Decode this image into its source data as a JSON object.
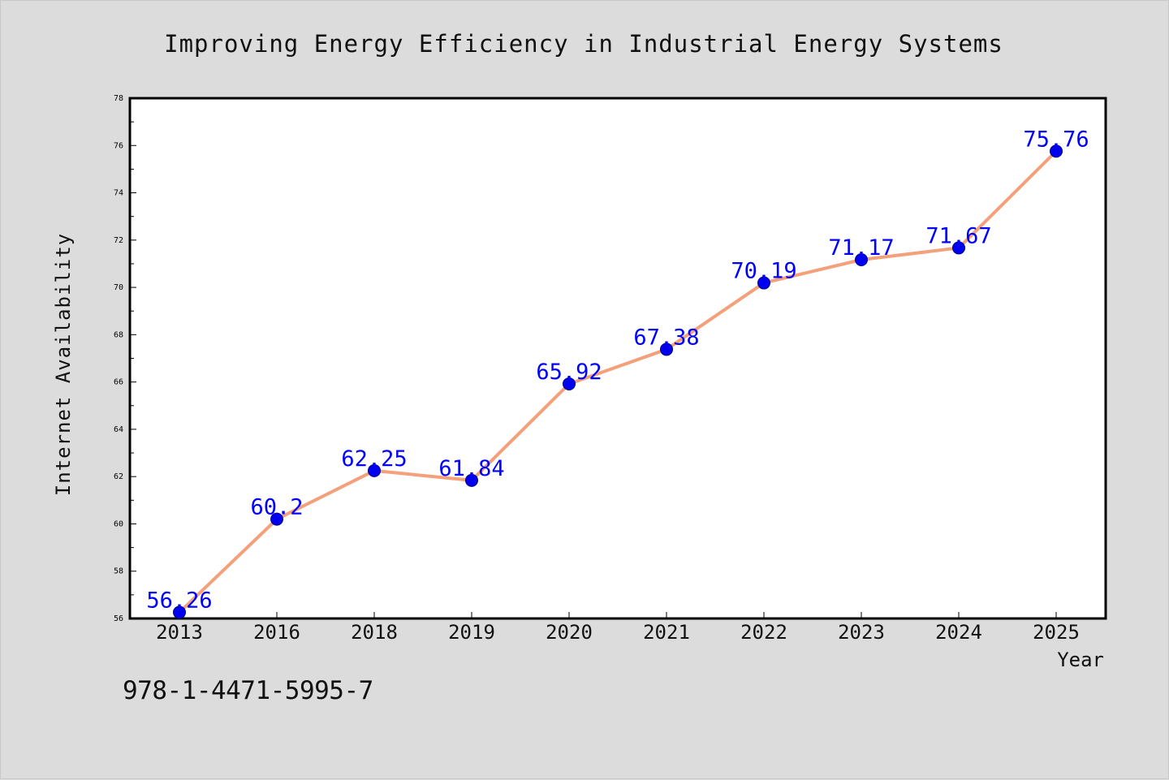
{
  "chart_data": {
    "type": "line",
    "title": "Improving Energy Efficiency in Industrial Energy Systems",
    "xlabel": "Year",
    "ylabel": "Internet Availability",
    "categories": [
      "2013",
      "2016",
      "2018",
      "2019",
      "2020",
      "2021",
      "2022",
      "2023",
      "2024",
      "2025"
    ],
    "series": [
      {
        "values": [
          56.26,
          60.2,
          62.25,
          61.84,
          65.92,
          67.38,
          70.19,
          71.17,
          71.67,
          75.76
        ],
        "value_labels": [
          "56.26",
          "60.2",
          "62.25",
          "61.84",
          "65.92",
          "67.38",
          "70.19",
          "71.17",
          "71.67",
          "75.76"
        ],
        "line_color": "#f4a07a",
        "marker_color": "#0000ee",
        "label_color": "#0000ff"
      }
    ],
    "ylim": [
      56,
      78
    ],
    "yticks": [
      56,
      58,
      60,
      62,
      64,
      66,
      68,
      70,
      72,
      74,
      76,
      78
    ],
    "grid": false,
    "legend": "none"
  },
  "footer": {
    "isbn": "978-1-4471-5995-7"
  }
}
